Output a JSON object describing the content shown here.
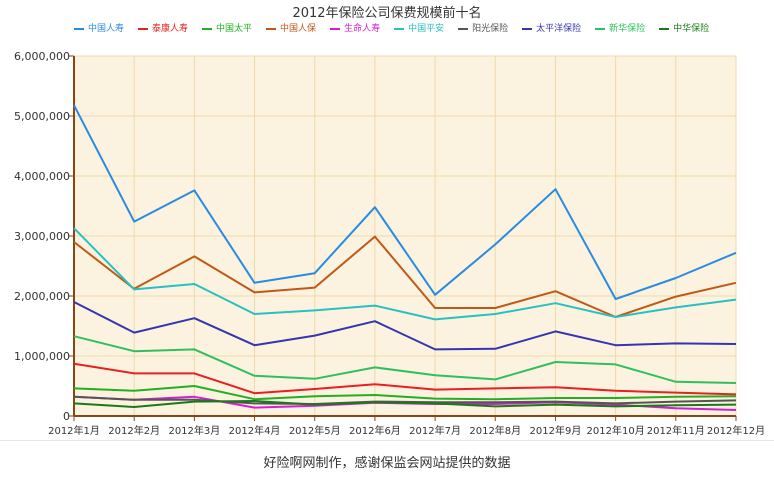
{
  "chart_data": {
    "type": "line",
    "title": "2012年保险公司保费规模前十名",
    "categories": [
      "2012年1月",
      "2012年2月",
      "2012年3月",
      "2012年4月",
      "2012年5月",
      "2012年6月",
      "2012年7月",
      "2012年8月",
      "2012年9月",
      "2012年10月",
      "2012年11月",
      "2012年12月"
    ],
    "y_ticks": [
      "0",
      "1,000,000",
      "2,000,000",
      "3,000,000",
      "4,000,000",
      "5,000,000",
      "6,000,000"
    ],
    "ylim": [
      0,
      6000000
    ],
    "grid": true,
    "legend_position": "top",
    "series": [
      {
        "name": "中国人寿",
        "color": "#2a8be0",
        "values": [
          5180000,
          3240000,
          3760000,
          2220000,
          2380000,
          3480000,
          2020000,
          2860000,
          3780000,
          1950000,
          2300000,
          2720000
        ]
      },
      {
        "name": "泰康人寿",
        "color": "#e82020",
        "values": [
          870000,
          710000,
          710000,
          380000,
          450000,
          530000,
          440000,
          460000,
          480000,
          420000,
          390000,
          360000
        ]
      },
      {
        "name": "中国太平",
        "color": "#22b022",
        "values": [
          460000,
          420000,
          500000,
          280000,
          330000,
          350000,
          290000,
          280000,
          300000,
          300000,
          320000,
          330000
        ]
      },
      {
        "name": "中国人保",
        "color": "#c05818",
        "values": [
          2900000,
          2120000,
          2660000,
          2060000,
          2140000,
          2990000,
          1800000,
          1800000,
          2080000,
          1650000,
          1990000,
          2220000
        ]
      },
      {
        "name": "生命人寿",
        "color": "#d41ed4",
        "values": [
          320000,
          270000,
          320000,
          140000,
          170000,
          220000,
          200000,
          200000,
          230000,
          190000,
          130000,
          100000
        ]
      },
      {
        "name": "中国平安",
        "color": "#28c0c0",
        "values": [
          3130000,
          2110000,
          2200000,
          1700000,
          1760000,
          1840000,
          1610000,
          1700000,
          1880000,
          1650000,
          1810000,
          1940000
        ]
      },
      {
        "name": "阳光保险",
        "color": "#555555",
        "values": [
          320000,
          270000,
          270000,
          210000,
          200000,
          240000,
          230000,
          230000,
          240000,
          210000,
          240000,
          260000
        ]
      },
      {
        "name": "太平洋保险",
        "color": "#3535b0",
        "values": [
          1900000,
          1390000,
          1630000,
          1180000,
          1340000,
          1580000,
          1110000,
          1120000,
          1410000,
          1180000,
          1210000,
          1200000
        ]
      },
      {
        "name": "新华保险",
        "color": "#2ec060",
        "values": [
          1330000,
          1080000,
          1110000,
          670000,
          620000,
          810000,
          680000,
          610000,
          900000,
          860000,
          570000,
          550000
        ]
      },
      {
        "name": "中华保险",
        "color": "#1a7a1a",
        "values": [
          210000,
          150000,
          240000,
          250000,
          190000,
          230000,
          210000,
          160000,
          190000,
          160000,
          180000,
          190000
        ]
      }
    ],
    "caption": "好险啊网制作，感谢保监会网站提供的数据"
  }
}
